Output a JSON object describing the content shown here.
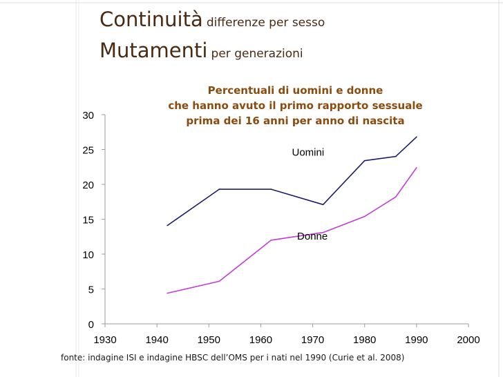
{
  "slide": {
    "title_line1_main": "Continuità",
    "title_line1_sub": "differenze per sesso",
    "title_line2_main": "Mutamenti",
    "title_line2_sub": "per generazioni",
    "source": "fonte: indagine ISI e indagine HBSC dell’OMS per i nati nel 1990 (Curie et al. 2008)"
  },
  "colors": {
    "title": "#4a2a12",
    "chart_title": "#8a4b0f",
    "men": "#1c1c6e",
    "women": "#c23bd4",
    "decor": "#d9dde5"
  },
  "chart_data": {
    "type": "line",
    "title_lines": [
      "Percentuali di uomini e donne",
      "che hanno avuto il primo rapporto sessuale",
      "prima dei 16 anni per anno di nascita"
    ],
    "xlabel": "",
    "ylabel": "",
    "xlim": [
      1930,
      2000
    ],
    "ylim": [
      0,
      30
    ],
    "xticks": [
      1930,
      1940,
      1950,
      1960,
      1970,
      1980,
      1990,
      2000
    ],
    "yticks": [
      0,
      5,
      10,
      15,
      20,
      25,
      30
    ],
    "grid": false,
    "series": [
      {
        "name": "Uomini",
        "color_key": "men",
        "x": [
          1942,
          1952,
          1962,
          1972,
          1980,
          1986,
          1990
        ],
        "y": [
          14.1,
          19.3,
          19.3,
          17.1,
          23.4,
          24.0,
          26.8
        ]
      },
      {
        "name": "Donne",
        "color_key": "women",
        "x": [
          1942,
          1952,
          1962,
          1972,
          1980,
          1986,
          1990
        ],
        "y": [
          4.4,
          6.1,
          12.0,
          13.1,
          15.4,
          18.2,
          22.4
        ]
      }
    ],
    "annotations": [
      {
        "text": "Uomini",
        "x": 1966,
        "y": 24.1
      },
      {
        "text": "Donne",
        "x": 1967,
        "y": 12.1
      }
    ]
  }
}
